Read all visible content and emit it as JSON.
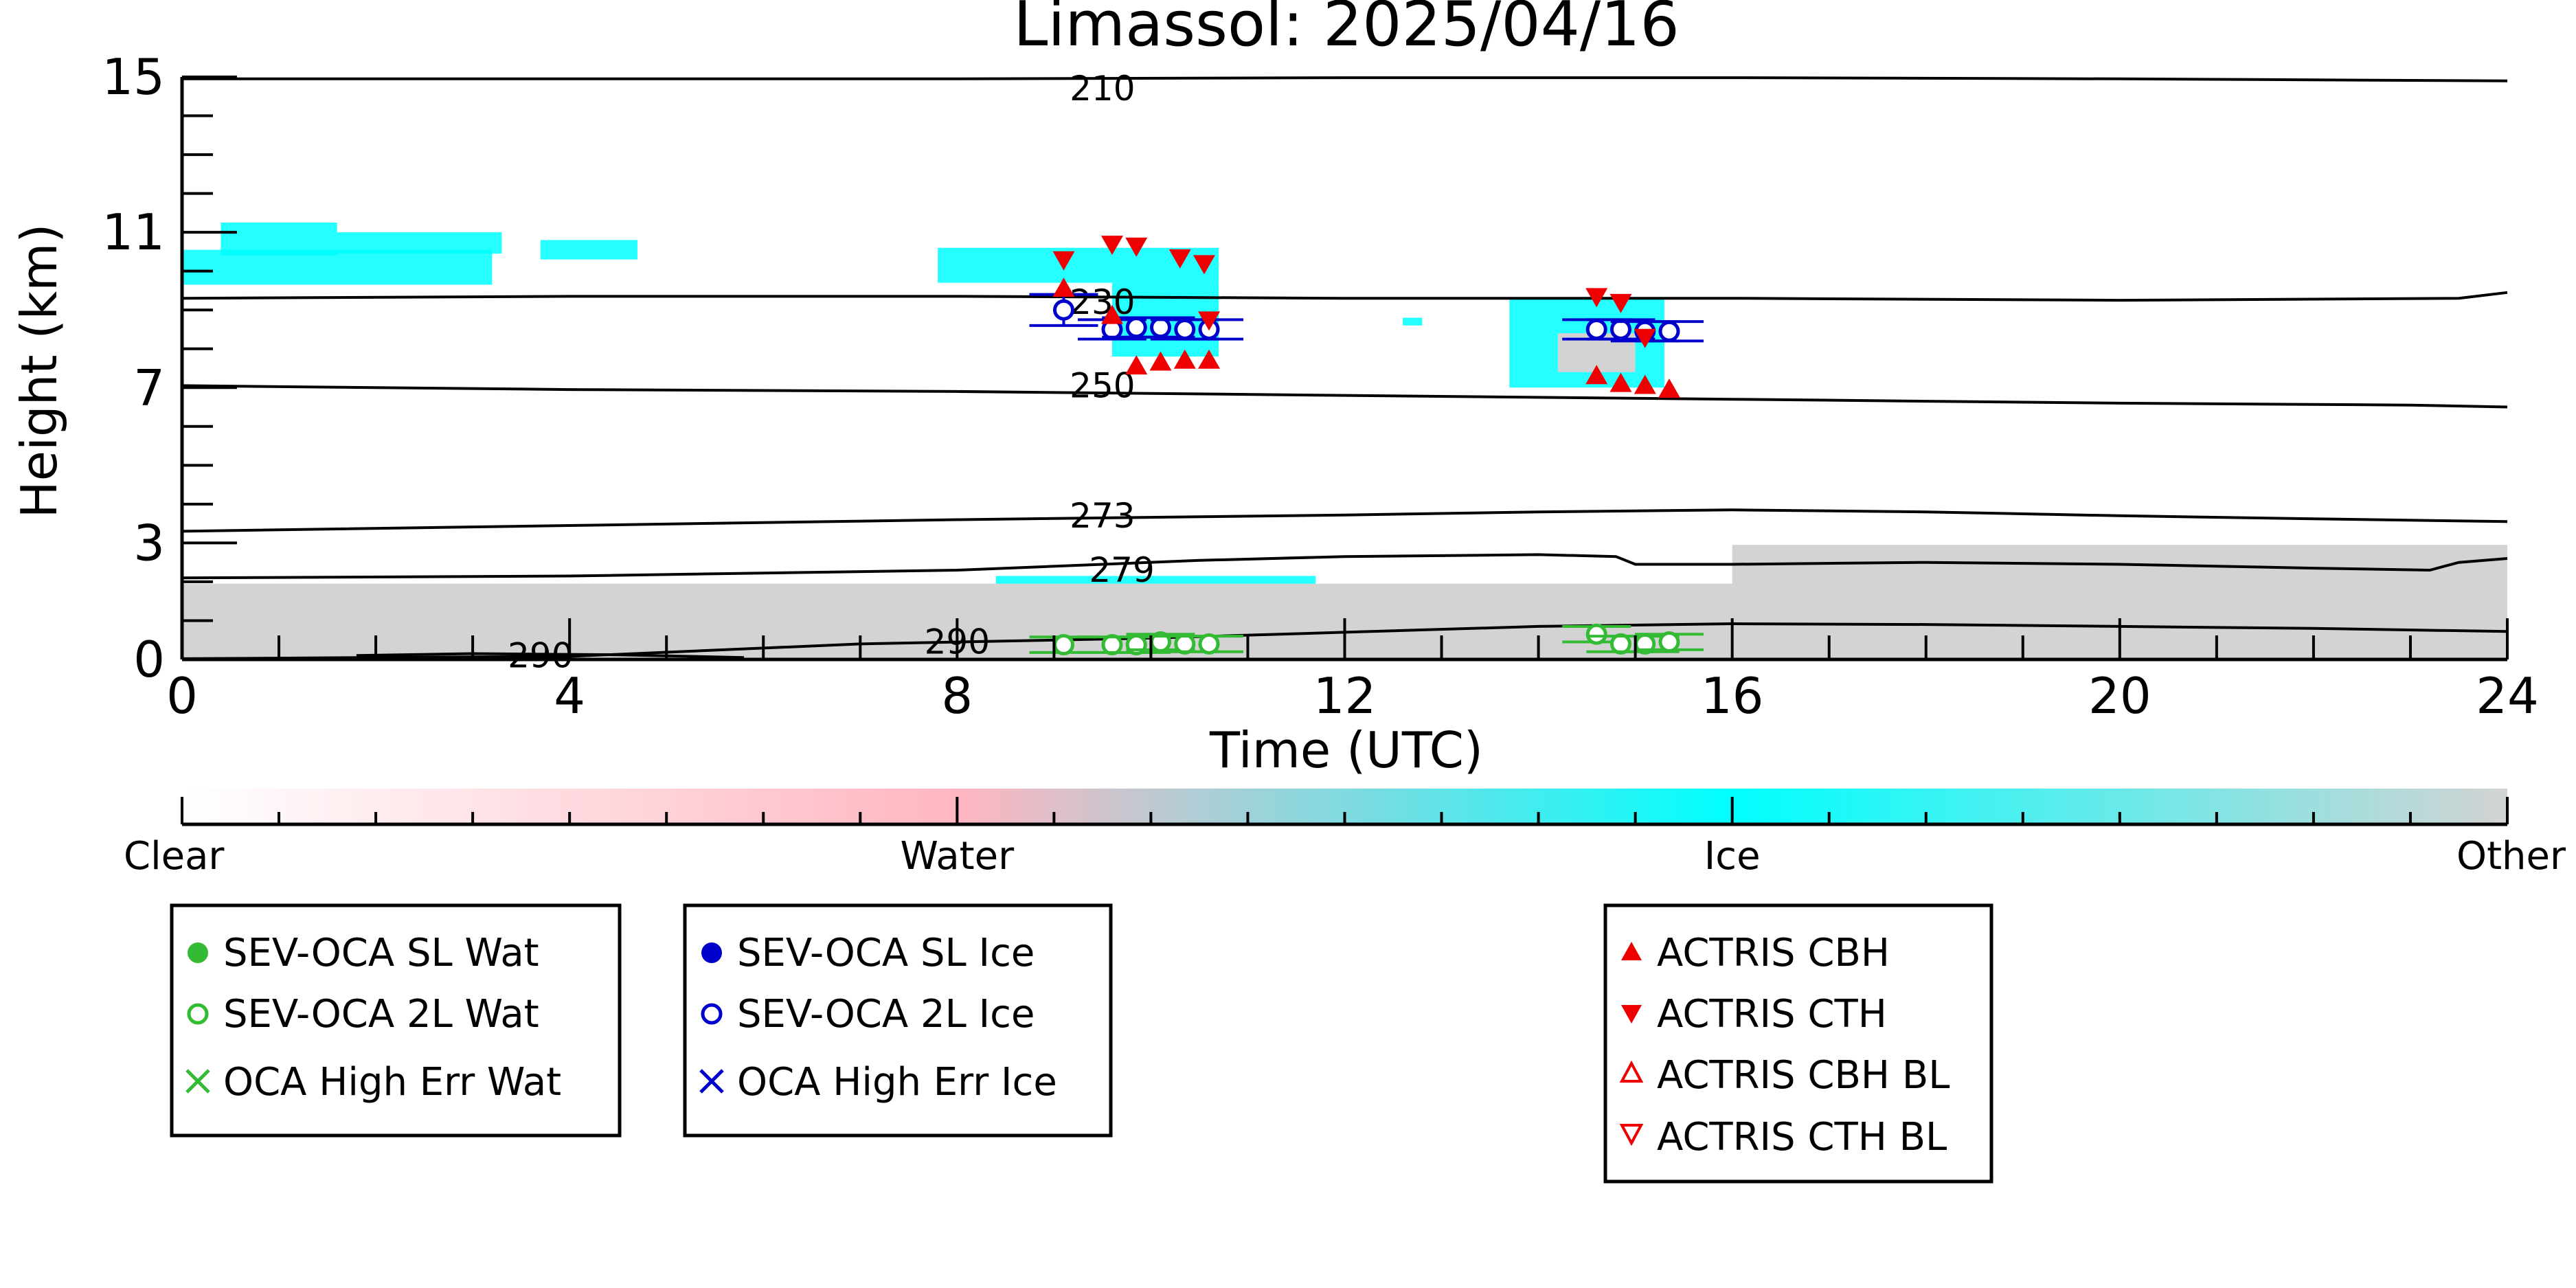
{
  "chart_data": {
    "type": "scatter",
    "title": "Limassol: 2025/04/16",
    "xlabel": "Time (UTC)",
    "ylabel": "Height (km)",
    "xlim": [
      0,
      24
    ],
    "ylim": [
      0,
      15
    ],
    "xticks": [
      0,
      4,
      8,
      12,
      16,
      20,
      24
    ],
    "yticks": [
      0,
      3,
      7,
      11,
      15
    ],
    "contours": [
      {
        "label": "210",
        "label_x": 9.5,
        "label_y": 14.7,
        "points": [
          [
            0,
            14.95
          ],
          [
            8,
            14.95
          ],
          [
            12,
            14.98
          ],
          [
            16,
            14.98
          ],
          [
            20,
            14.95
          ],
          [
            24,
            14.9
          ]
        ]
      },
      {
        "label": "230",
        "label_x": 9.5,
        "label_y": 9.2,
        "points": [
          [
            0,
            9.3
          ],
          [
            4,
            9.35
          ],
          [
            8,
            9.35
          ],
          [
            12,
            9.3
          ],
          [
            16,
            9.3
          ],
          [
            20,
            9.25
          ],
          [
            23.5,
            9.3
          ],
          [
            24,
            9.45
          ]
        ]
      },
      {
        "label": "250",
        "label_x": 9.5,
        "label_y": 7.05,
        "points": [
          [
            0,
            7.05
          ],
          [
            4,
            6.95
          ],
          [
            8,
            6.9
          ],
          [
            12,
            6.8
          ],
          [
            16,
            6.7
          ],
          [
            20,
            6.6
          ],
          [
            23,
            6.55
          ],
          [
            24,
            6.5
          ]
        ]
      },
      {
        "label": "273",
        "label_x": 9.5,
        "label_y": 3.7,
        "points": [
          [
            0,
            3.3
          ],
          [
            4,
            3.45
          ],
          [
            8,
            3.6
          ],
          [
            12,
            3.72
          ],
          [
            14,
            3.8
          ],
          [
            16,
            3.85
          ],
          [
            18,
            3.8
          ],
          [
            20,
            3.7
          ],
          [
            22,
            3.62
          ],
          [
            24,
            3.55
          ]
        ]
      },
      {
        "label": "279",
        "label_x": 9.7,
        "label_y": 2.3,
        "points": [
          [
            0,
            2.1
          ],
          [
            4,
            2.15
          ],
          [
            8,
            2.3
          ],
          [
            10.5,
            2.55
          ],
          [
            12,
            2.65
          ],
          [
            14,
            2.7
          ],
          [
            14.8,
            2.65
          ],
          [
            15,
            2.45
          ],
          [
            16,
            2.45
          ],
          [
            18,
            2.5
          ],
          [
            20,
            2.45
          ],
          [
            22,
            2.35
          ],
          [
            23.2,
            2.3
          ],
          [
            23.5,
            2.5
          ],
          [
            24,
            2.6
          ]
        ]
      },
      {
        "label": "290",
        "label_x": 8.0,
        "label_y": 0.45,
        "points": [
          [
            0,
            0.02
          ],
          [
            4,
            0.08
          ],
          [
            7,
            0.4
          ],
          [
            8,
            0.45
          ],
          [
            10,
            0.55
          ],
          [
            12,
            0.7
          ],
          [
            14,
            0.85
          ],
          [
            16,
            0.92
          ],
          [
            18,
            0.9
          ],
          [
            20,
            0.85
          ],
          [
            22,
            0.8
          ],
          [
            24,
            0.72
          ]
        ]
      },
      {
        "label": "290",
        "label_x": 3.7,
        "label_y": 0.1,
        "points": [
          [
            1.8,
            0.1
          ],
          [
            3,
            0.15
          ],
          [
            4.5,
            0.12
          ],
          [
            5.8,
            0.05
          ]
        ]
      }
    ],
    "cloud_regions": [
      {
        "phase": "Other",
        "x0": 0,
        "x1": 24,
        "y0": 0,
        "y1": 1.95
      },
      {
        "phase": "Other",
        "x0": 16,
        "x1": 24,
        "y0": 1.7,
        "y1": 2.95
      },
      {
        "phase": "Ice",
        "x0": 0,
        "x1": 3.2,
        "y0": 9.65,
        "y1": 10.55
      },
      {
        "phase": "Ice",
        "x0": 0.4,
        "x1": 1.6,
        "y0": 10.4,
        "y1": 11.25
      },
      {
        "phase": "Ice",
        "x0": 1.6,
        "x1": 3.3,
        "y0": 10.45,
        "y1": 11.0
      },
      {
        "phase": "Ice",
        "x0": 3.7,
        "x1": 4.7,
        "y0": 10.3,
        "y1": 10.8
      },
      {
        "phase": "Ice",
        "x0": 7.8,
        "x1": 10.7,
        "y0": 9.7,
        "y1": 10.6
      },
      {
        "phase": "Ice",
        "x0": 9.6,
        "x1": 10.7,
        "y0": 7.8,
        "y1": 9.7
      },
      {
        "phase": "Ice",
        "x0": 13.7,
        "x1": 15.3,
        "y0": 7.0,
        "y1": 9.3
      },
      {
        "phase": "Other",
        "x0": 14.2,
        "x1": 15.0,
        "y0": 7.4,
        "y1": 8.4
      },
      {
        "phase": "Ice",
        "x0": 12.6,
        "x1": 12.8,
        "y0": 8.6,
        "y1": 8.8
      },
      {
        "phase": "Ice",
        "x0": 8.4,
        "x1": 11.7,
        "y0": 1.95,
        "y1": 2.15
      }
    ],
    "series": [
      {
        "name": "SEV-OCA 2L Ice",
        "marker": "open-circle",
        "color": "#0000cc",
        "errorbars": true,
        "points": [
          [
            9.1,
            9.0
          ],
          [
            9.6,
            8.5
          ],
          [
            9.85,
            8.55
          ],
          [
            10.1,
            8.55
          ],
          [
            10.35,
            8.5
          ],
          [
            10.6,
            8.5
          ],
          [
            14.6,
            8.5
          ],
          [
            14.85,
            8.5
          ],
          [
            15.1,
            8.45
          ],
          [
            15.35,
            8.45
          ]
        ],
        "err": [
          0.4,
          0.25,
          0.25,
          0.25,
          0.25,
          0.25,
          0.25,
          0.25,
          0.25,
          0.25
        ]
      },
      {
        "name": "SEV-OCA 2L Wat",
        "marker": "open-circle",
        "color": "#33bb33",
        "errorbars": true,
        "points": [
          [
            9.1,
            0.38
          ],
          [
            9.6,
            0.38
          ],
          [
            9.85,
            0.38
          ],
          [
            10.1,
            0.45
          ],
          [
            10.35,
            0.4
          ],
          [
            10.6,
            0.4
          ],
          [
            14.6,
            0.65
          ],
          [
            14.85,
            0.4
          ],
          [
            15.1,
            0.4
          ],
          [
            15.35,
            0.45
          ]
        ],
        "err": [
          0.2,
          0.2,
          0.2,
          0.2,
          0.2,
          0.2,
          0.2,
          0.2,
          0.2,
          0.2
        ]
      },
      {
        "name": "ACTRIS CTH",
        "marker": "filled-triangle-down",
        "color": "#ee0000",
        "points": [
          [
            9.1,
            10.3
          ],
          [
            9.6,
            10.7
          ],
          [
            9.85,
            10.65
          ],
          [
            10.3,
            10.35
          ],
          [
            10.55,
            10.2
          ],
          [
            10.6,
            8.75
          ],
          [
            14.6,
            9.35
          ],
          [
            14.85,
            9.2
          ],
          [
            15.1,
            8.3
          ]
        ]
      },
      {
        "name": "ACTRIS CBH",
        "marker": "filled-triangle-up",
        "color": "#ee0000",
        "points": [
          [
            9.1,
            9.55
          ],
          [
            9.6,
            8.85
          ],
          [
            9.85,
            7.55
          ],
          [
            10.1,
            7.65
          ],
          [
            10.35,
            7.7
          ],
          [
            10.6,
            7.7
          ],
          [
            14.6,
            7.3
          ],
          [
            14.85,
            7.1
          ],
          [
            15.1,
            7.05
          ],
          [
            15.35,
            6.95
          ]
        ]
      }
    ],
    "colorbar": {
      "labels": [
        "Clear",
        "Water",
        "Ice",
        "Other"
      ],
      "stops": [
        [
          "#ffffff",
          0
        ],
        [
          "#ffb6c1",
          0.333
        ],
        [
          "#00ffff",
          0.667
        ],
        [
          "#d3d3d3",
          1
        ]
      ],
      "minor_ticks": 24
    },
    "legend": {
      "water": [
        "SEV-OCA SL Wat",
        "SEV-OCA 2L Wat",
        "OCA High Err Wat"
      ],
      "ice": [
        "SEV-OCA SL Ice",
        "SEV-OCA 2L Ice",
        "OCA High Err Ice"
      ],
      "actris": [
        "ACTRIS CBH",
        "ACTRIS CTH",
        "ACTRIS CBH BL",
        "ACTRIS CTH BL"
      ]
    },
    "colors": {
      "water": "#33bb33",
      "ice": "#0000cc",
      "actris": "#ee0000",
      "ice_phase": "#00ffff",
      "other_phase": "#d3d3d3"
    }
  }
}
